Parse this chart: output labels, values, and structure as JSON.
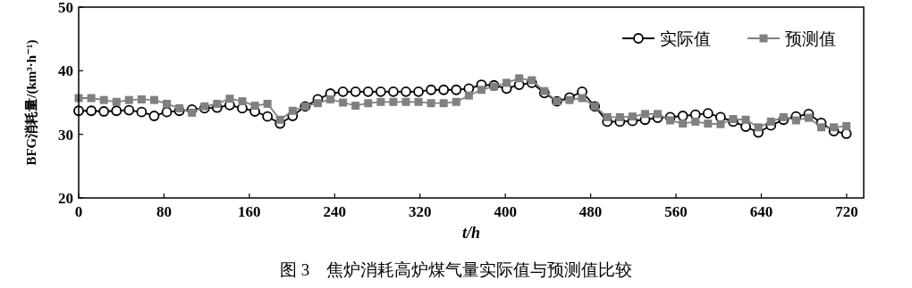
{
  "chart_data": {
    "type": "line",
    "title": "图 3　焦炉消耗高炉煤气量实际值与预测值比较",
    "xlabel": "t/h",
    "ylabel": "BFG消耗量/(km³·h⁻¹)",
    "x": [
      0,
      11.8,
      23.6,
      35.4,
      47.2,
      59,
      70.8,
      82.6,
      94.4,
      106.2,
      118,
      129.8,
      141.6,
      153.4,
      165.2,
      177,
      188.8,
      200.6,
      212.4,
      224.2,
      236,
      247.8,
      259.6,
      271.4,
      283.2,
      295,
      306.8,
      318.6,
      330.4,
      342.2,
      354,
      365.8,
      377.6,
      389.4,
      401.2,
      413,
      424.8,
      436.6,
      448.4,
      460.2,
      472,
      483.8,
      495.6,
      507.4,
      519.2,
      531,
      542.8,
      554.6,
      566.4,
      578.2,
      590,
      601.8,
      613.6,
      625.4,
      637.2,
      649,
      660.8,
      672.6,
      684.4,
      696.2,
      708,
      719.8
    ],
    "series": [
      {
        "name": "实际值",
        "color": "#000000",
        "marker": "circle",
        "values": [
          33.7,
          33.7,
          33.6,
          33.7,
          33.8,
          33.5,
          32.9,
          33.5,
          33.7,
          33.9,
          34.1,
          34.2,
          34.6,
          34.1,
          33.6,
          32.8,
          31.7,
          32.9,
          34.4,
          35.5,
          36.4,
          36.7,
          36.7,
          36.7,
          36.7,
          36.7,
          36.7,
          36.7,
          37.0,
          37.0,
          37.0,
          37.2,
          37.8,
          37.7,
          37.2,
          37.8,
          38.1,
          36.5,
          35.2,
          35.8,
          36.7,
          34.4,
          32.0,
          32.0,
          32.1,
          32.3,
          32.6,
          32.7,
          32.9,
          33.1,
          33.3,
          32.7,
          32.0,
          31.2,
          30.3,
          31.4,
          32.3,
          32.8,
          33.2,
          31.8,
          30.5,
          30.1
        ]
      },
      {
        "name": "预测值",
        "color": "#808080",
        "marker": "square",
        "values": [
          35.7,
          35.7,
          35.4,
          35.1,
          35.4,
          35.5,
          35.4,
          34.8,
          34.1,
          33.4,
          34.4,
          34.8,
          35.6,
          35.2,
          34.5,
          34.8,
          32.3,
          33.7,
          34.4,
          34.9,
          35.5,
          35.0,
          34.5,
          34.9,
          35.1,
          35.1,
          35.1,
          35.1,
          34.9,
          34.9,
          35.1,
          36.1,
          37.0,
          37.5,
          38.1,
          38.8,
          38.5,
          36.8,
          35.2,
          35.4,
          35.7,
          34.4,
          32.7,
          32.7,
          32.8,
          33.2,
          33.2,
          32.2,
          31.7,
          32.0,
          31.7,
          31.6,
          32.4,
          32.3,
          31.1,
          32.0,
          32.7,
          32.2,
          32.6,
          31.1,
          31.1,
          31.3
        ]
      }
    ],
    "xlim": [
      0,
      736
    ],
    "ylim": [
      20,
      50
    ],
    "xticks": [
      0,
      80,
      160,
      240,
      320,
      400,
      480,
      560,
      640,
      720
    ],
    "yticks": [
      20,
      30,
      40,
      50
    ],
    "grid": false,
    "legend": "top right",
    "line_style": "solid"
  }
}
